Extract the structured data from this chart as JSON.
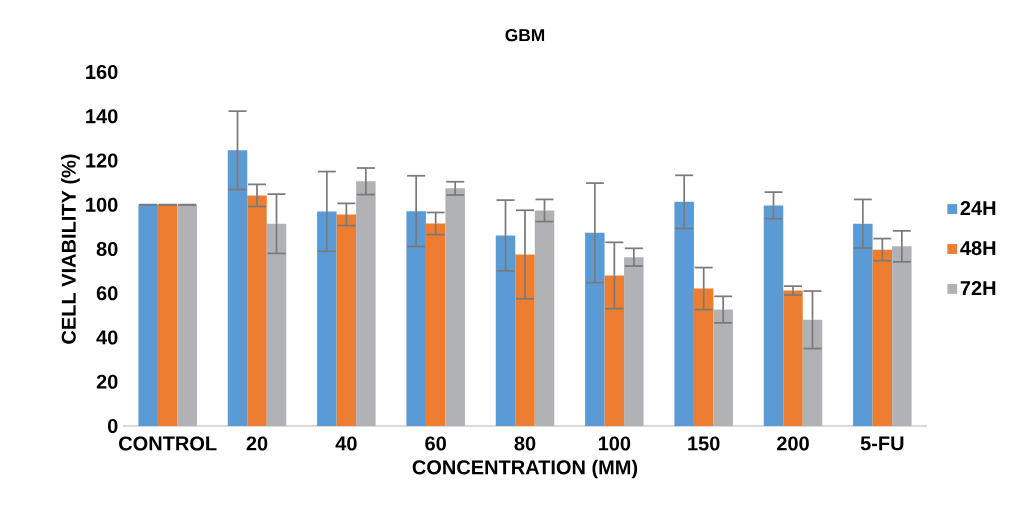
{
  "chart_data": {
    "type": "bar",
    "title": "GBM",
    "xlabel": "CONCENTRATION (MM)",
    "ylabel": "CELL VIABILITY (%)",
    "categories": [
      "CONTROL",
      "20",
      "40",
      "60",
      "80",
      "100",
      "150",
      "200",
      "5-FU"
    ],
    "series": [
      {
        "name": "24H",
        "color": "#5b9bd5",
        "values": [
          100,
          124.6,
          97,
          97.1,
          86.1,
          87.3,
          101.3,
          99.7,
          91.4
        ],
        "errors": [
          0,
          17.7,
          18,
          16,
          16,
          22.5,
          12,
          6,
          11
        ]
      },
      {
        "name": "48H",
        "color": "#ed7d31",
        "values": [
          100,
          104.2,
          95.6,
          91.5,
          77.5,
          68,
          62.1,
          61.2,
          79.7
        ],
        "errors": [
          0,
          5,
          5,
          5,
          20,
          15,
          9.5,
          2,
          5
        ]
      },
      {
        "name": "72H",
        "color": "#b1b2b5",
        "values": [
          100,
          91.4,
          110.6,
          107.4,
          97.4,
          76.3,
          52.6,
          48,
          81.2
        ],
        "errors": [
          0,
          13.4,
          6,
          3,
          5,
          4,
          6,
          13,
          7
        ]
      }
    ],
    "ylim": [
      0,
      160
    ],
    "yticks": [
      0,
      20,
      40,
      60,
      80,
      100,
      120,
      140,
      160
    ],
    "legend": "right"
  }
}
